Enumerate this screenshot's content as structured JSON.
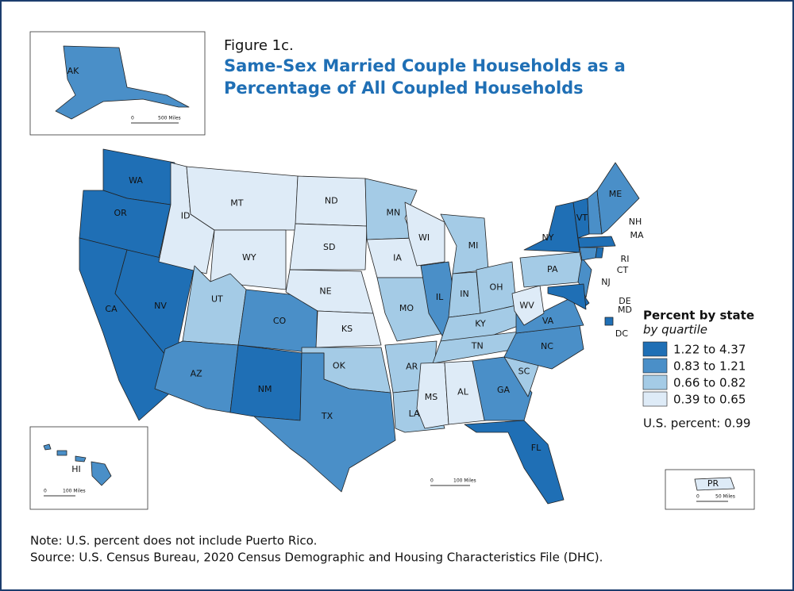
{
  "header": {
    "figure": "Figure 1c.",
    "title_lines": [
      "Same-Sex Married Couple Households as a",
      "Percentage of All Coupled Households"
    ]
  },
  "legend": {
    "title": "Percent by state",
    "subtitle": "by quartile",
    "classes": [
      {
        "label": "1.22 to 4.37",
        "color": "#1f6fb5"
      },
      {
        "label": "0.83 to 1.21",
        "color": "#4a8fc8"
      },
      {
        "label": "0.66 to 0.82",
        "color": "#a4cbe6"
      },
      {
        "label": "0.39 to 0.65",
        "color": "#deebf7"
      }
    ]
  },
  "us_percent": "U.S. percent: 0.99",
  "states": [
    {
      "label": "WA",
      "class": 0
    },
    {
      "label": "OR",
      "class": 0
    },
    {
      "label": "CA",
      "class": 0
    },
    {
      "label": "NV",
      "class": 0
    },
    {
      "label": "ID",
      "class": 3
    },
    {
      "label": "MT",
      "class": 3
    },
    {
      "label": "WY",
      "class": 3
    },
    {
      "label": "UT",
      "class": 2
    },
    {
      "label": "CO",
      "class": 1
    },
    {
      "label": "AZ",
      "class": 1
    },
    {
      "label": "NM",
      "class": 0
    },
    {
      "label": "ND",
      "class": 3
    },
    {
      "label": "SD",
      "class": 3
    },
    {
      "label": "NE",
      "class": 3
    },
    {
      "label": "KS",
      "class": 3
    },
    {
      "label": "OK",
      "class": 2
    },
    {
      "label": "TX",
      "class": 1
    },
    {
      "label": "MN",
      "class": 2
    },
    {
      "label": "IA",
      "class": 3
    },
    {
      "label": "MO",
      "class": 2
    },
    {
      "label": "AR",
      "class": 2
    },
    {
      "label": "LA",
      "class": 2
    },
    {
      "label": "WI",
      "class": 3
    },
    {
      "label": "IL",
      "class": 1
    },
    {
      "label": "MI",
      "class": 2
    },
    {
      "label": "IN",
      "class": 2
    },
    {
      "label": "OH",
      "class": 2
    },
    {
      "label": "KY",
      "class": 2
    },
    {
      "label": "TN",
      "class": 2
    },
    {
      "label": "MS",
      "class": 3
    },
    {
      "label": "AL",
      "class": 3
    },
    {
      "label": "GA",
      "class": 1
    },
    {
      "label": "FL",
      "class": 0
    },
    {
      "label": "SC",
      "class": 2
    },
    {
      "label": "NC",
      "class": 1
    },
    {
      "label": "VA",
      "class": 1
    },
    {
      "label": "WV",
      "class": 3
    },
    {
      "label": "PA",
      "class": 2
    },
    {
      "label": "NY",
      "class": 0
    },
    {
      "label": "NJ",
      "class": 1
    },
    {
      "label": "DE",
      "class": 0
    },
    {
      "label": "MD",
      "class": 0
    },
    {
      "label": "VT",
      "class": 0
    },
    {
      "label": "NH",
      "class": 1
    },
    {
      "label": "ME",
      "class": 1
    },
    {
      "label": "MA",
      "class": 0
    },
    {
      "label": "CT",
      "class": 1
    },
    {
      "label": "RI",
      "class": 0
    },
    {
      "label": "DC",
      "class": 0
    },
    {
      "label": "AK",
      "class": 1
    },
    {
      "label": "HI",
      "class": 1
    },
    {
      "label": "PR",
      "class": 3
    }
  ],
  "scale_bars": [
    {
      "zero": "0",
      "label": "500 Miles"
    },
    {
      "zero": "0",
      "label": "100 Miles"
    },
    {
      "zero": "0",
      "label": "100 Miles"
    },
    {
      "zero": "0",
      "label": "50 Miles"
    }
  ],
  "notes": [
    "Note: U.S. percent does not include Puerto Rico.",
    "Source: U.S. Census Bureau, 2020 Census Demographic and Housing Characteristics File (DHC)."
  ]
}
